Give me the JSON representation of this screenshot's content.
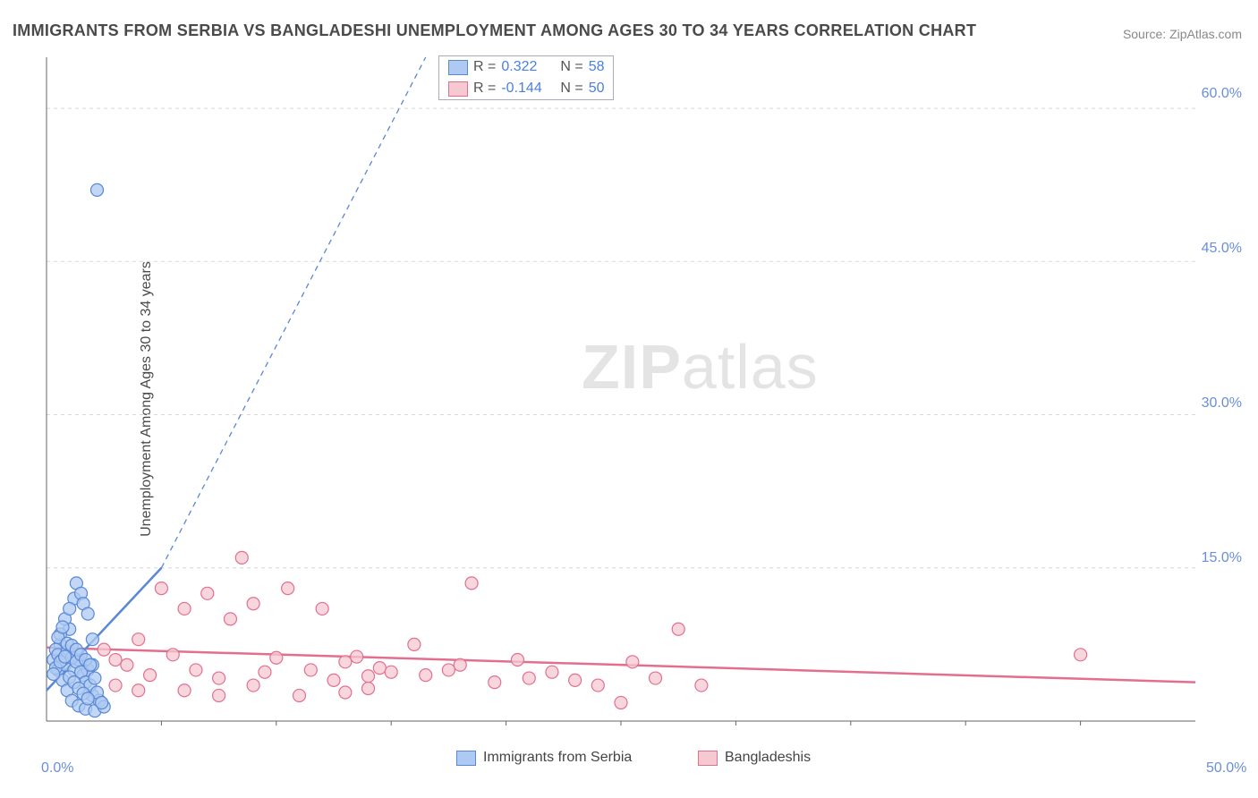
{
  "title": "IMMIGRANTS FROM SERBIA VS BANGLADESHI UNEMPLOYMENT AMONG AGES 30 TO 34 YEARS CORRELATION CHART",
  "source": "Source: ZipAtlas.com",
  "ylabel": "Unemployment Among Ages 30 to 34 years",
  "watermark": "ZIPatlas",
  "chart": {
    "type": "scatter",
    "xlim": [
      0,
      50
    ],
    "ylim": [
      0,
      65
    ],
    "xtick": [
      {
        "v": 0,
        "label": "0.0%"
      },
      {
        "v": 50,
        "label": "50.0%"
      }
    ],
    "ytick": [
      {
        "v": 15,
        "label": "15.0%"
      },
      {
        "v": 30,
        "label": "30.0%"
      },
      {
        "v": 45,
        "label": "45.0%"
      },
      {
        "v": 60,
        "label": "60.0%"
      }
    ],
    "grid_color": "#d8d8d8",
    "grid_dash": "4,4",
    "axis_color": "#666",
    "background_color": "#ffffff",
    "marker_radius": 7,
    "marker_stroke_width": 1.2,
    "series": [
      {
        "name": "Immigrants from Serbia",
        "color_fill": "#aecaf2",
        "color_stroke": "#5a87d6",
        "r_label": "R =",
        "r_value": "0.322",
        "n_label": "N =",
        "n_value": "58",
        "trend": {
          "x1": 0,
          "y1": 3,
          "x2": 5,
          "y2": 15,
          "width": 2.5,
          "dash": "none"
        },
        "trend_ext": {
          "x1": 5,
          "y1": 15,
          "x2": 16.5,
          "y2": 65,
          "width": 1.3,
          "dash": "6,5"
        },
        "points": [
          [
            0.3,
            6.0
          ],
          [
            0.5,
            5.0
          ],
          [
            0.6,
            7.5
          ],
          [
            0.8,
            5.5
          ],
          [
            1.0,
            9.0
          ],
          [
            1.2,
            12.0
          ],
          [
            1.3,
            13.5
          ],
          [
            1.5,
            12.5
          ],
          [
            1.6,
            11.5
          ],
          [
            1.8,
            10.5
          ],
          [
            2.0,
            8.0
          ],
          [
            0.7,
            4.0
          ],
          [
            0.9,
            3.0
          ],
          [
            1.1,
            2.0
          ],
          [
            1.4,
            1.5
          ],
          [
            1.7,
            1.2
          ],
          [
            2.1,
            1.0
          ],
          [
            2.0,
            2.5
          ],
          [
            2.3,
            2.0
          ],
          [
            2.5,
            1.4
          ],
          [
            0.4,
            7.0
          ],
          [
            0.6,
            8.5
          ],
          [
            0.8,
            10.0
          ],
          [
            1.0,
            11.0
          ],
          [
            1.2,
            5.0
          ],
          [
            1.4,
            6.0
          ],
          [
            1.6,
            4.5
          ],
          [
            1.8,
            5.0
          ],
          [
            2.0,
            5.5
          ],
          [
            0.5,
            6.5
          ],
          [
            0.7,
            6.0
          ],
          [
            0.9,
            6.8
          ],
          [
            1.1,
            6.2
          ],
          [
            1.3,
            5.8
          ],
          [
            1.5,
            4.8
          ],
          [
            1.7,
            3.8
          ],
          [
            1.9,
            3.5
          ],
          [
            2.2,
            2.8
          ],
          [
            0.4,
            5.2
          ],
          [
            0.6,
            5.8
          ],
          [
            0.8,
            6.3
          ],
          [
            1.0,
            4.3
          ],
          [
            1.2,
            3.8
          ],
          [
            1.4,
            3.2
          ],
          [
            1.6,
            2.7
          ],
          [
            1.8,
            2.2
          ],
          [
            0.3,
            4.6
          ],
          [
            0.5,
            8.2
          ],
          [
            0.7,
            9.2
          ],
          [
            0.9,
            7.6
          ],
          [
            2.2,
            52.0
          ],
          [
            1.1,
            7.4
          ],
          [
            1.3,
            7.0
          ],
          [
            1.5,
            6.5
          ],
          [
            1.7,
            6.0
          ],
          [
            1.9,
            5.5
          ],
          [
            2.1,
            4.2
          ],
          [
            2.4,
            1.8
          ]
        ]
      },
      {
        "name": "Bangladeshis",
        "color_fill": "#f6c8d1",
        "color_stroke": "#e36f8e",
        "r_label": "R =",
        "r_value": "-0.144",
        "n_label": "N =",
        "n_value": "50",
        "trend": {
          "x1": 0,
          "y1": 7.2,
          "x2": 50,
          "y2": 3.8,
          "width": 2.5,
          "dash": "none"
        },
        "points": [
          [
            2.5,
            7.0
          ],
          [
            3.0,
            6.0
          ],
          [
            3.5,
            5.5
          ],
          [
            4.0,
            8.0
          ],
          [
            4.5,
            4.5
          ],
          [
            5.0,
            13.0
          ],
          [
            5.5,
            6.5
          ],
          [
            6.0,
            11.0
          ],
          [
            6.5,
            5.0
          ],
          [
            7.0,
            12.5
          ],
          [
            7.5,
            4.2
          ],
          [
            8.0,
            10.0
          ],
          [
            8.5,
            16.0
          ],
          [
            9.0,
            11.5
          ],
          [
            9.5,
            4.8
          ],
          [
            10.0,
            6.2
          ],
          [
            10.5,
            13.0
          ],
          [
            9.0,
            3.5
          ],
          [
            11.5,
            5.0
          ],
          [
            12.0,
            11.0
          ],
          [
            12.5,
            4.0
          ],
          [
            13.0,
            5.8
          ],
          [
            13.5,
            6.3
          ],
          [
            14.0,
            4.4
          ],
          [
            14.0,
            3.2
          ],
          [
            14.5,
            5.2
          ],
          [
            15.0,
            4.8
          ],
          [
            16.0,
            7.5
          ],
          [
            16.5,
            4.5
          ],
          [
            17.5,
            5.0
          ],
          [
            18.5,
            13.5
          ],
          [
            18.0,
            5.5
          ],
          [
            19.5,
            3.8
          ],
          [
            20.5,
            6.0
          ],
          [
            21.0,
            4.2
          ],
          [
            22.0,
            4.8
          ],
          [
            23.0,
            4.0
          ],
          [
            24.0,
            3.5
          ],
          [
            25.5,
            5.8
          ],
          [
            26.5,
            4.2
          ],
          [
            27.5,
            9.0
          ],
          [
            28.5,
            3.5
          ],
          [
            45.0,
            6.5
          ],
          [
            25.0,
            1.8
          ],
          [
            6.0,
            3.0
          ],
          [
            7.5,
            2.5
          ],
          [
            11.0,
            2.5
          ],
          [
            13.0,
            2.8
          ],
          [
            3.0,
            3.5
          ],
          [
            4.0,
            3.0
          ]
        ]
      }
    ],
    "legend_bottom": [
      {
        "swatch_fill": "#aecaf2",
        "swatch_stroke": "#5a87d6",
        "label": "Immigrants from Serbia"
      },
      {
        "swatch_fill": "#f6c8d1",
        "swatch_stroke": "#e36f8e",
        "label": "Bangladeshis"
      }
    ]
  }
}
